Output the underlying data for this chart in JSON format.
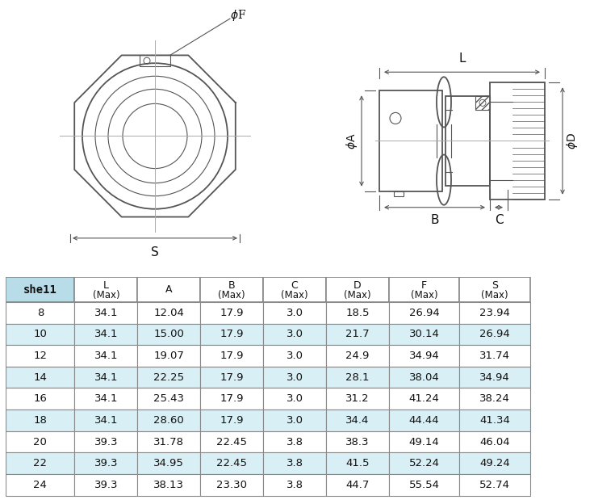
{
  "table_header_labels": [
    "she11",
    "L\n(Max)",
    "A",
    "B\n(Max)",
    "C\n(Max)",
    "D\n(Max)",
    "F\n(Max)",
    "S\n(Max)"
  ],
  "table_rows": [
    [
      "8",
      "34.1",
      "12.04",
      "17.9",
      "3.0",
      "18.5",
      "26.94",
      "23.94"
    ],
    [
      "10",
      "34.1",
      "15.00",
      "17.9",
      "3.0",
      "21.7",
      "30.14",
      "26.94"
    ],
    [
      "12",
      "34.1",
      "19.07",
      "17.9",
      "3.0",
      "24.9",
      "34.94",
      "31.74"
    ],
    [
      "14",
      "34.1",
      "22.25",
      "17.9",
      "3.0",
      "28.1",
      "38.04",
      "34.94"
    ],
    [
      "16",
      "34.1",
      "25.43",
      "17.9",
      "3.0",
      "31.2",
      "41.24",
      "38.24"
    ],
    [
      "18",
      "34.1",
      "28.60",
      "17.9",
      "3.0",
      "34.4",
      "44.44",
      "41.34"
    ],
    [
      "20",
      "39.3",
      "31.78",
      "22.45",
      "3.8",
      "38.3",
      "49.14",
      "46.04"
    ],
    [
      "22",
      "39.3",
      "34.95",
      "22.45",
      "3.8",
      "41.5",
      "52.24",
      "49.24"
    ],
    [
      "24",
      "39.3",
      "38.13",
      "23.30",
      "3.8",
      "44.7",
      "55.54",
      "52.74"
    ]
  ],
  "row_colors_alt": [
    "#ffffff",
    "#d8eff5"
  ],
  "header_bg": "#ffffff",
  "shell_header_bg": "#b8dce8",
  "border_color": "#888888",
  "text_color": "#111111",
  "diagram_bg": "#ffffff",
  "fig_bg": "#ffffff"
}
